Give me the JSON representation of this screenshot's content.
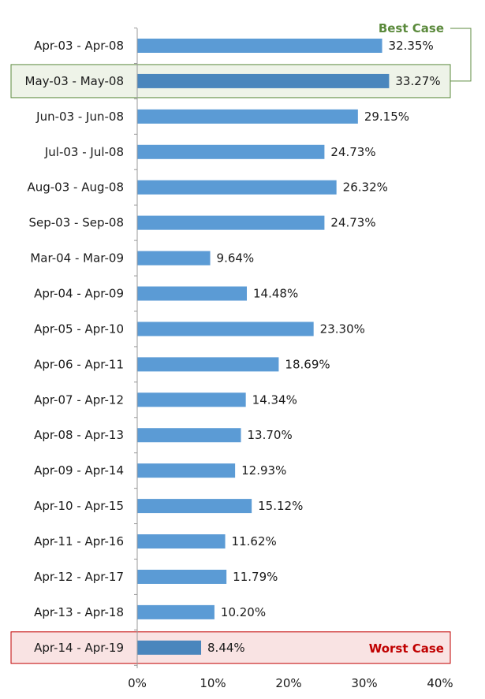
{
  "chart_data": {
    "type": "bar",
    "orientation": "horizontal",
    "categories": [
      "Apr-03 - Apr-08",
      "May-03 - May-08",
      "Jun-03 - Jun-08",
      "Jul-03 - Jul-08",
      "Aug-03 - Aug-08",
      "Sep-03 - Sep-08",
      "Mar-04 - Mar-09",
      "Apr-04 - Apr-09",
      "Apr-05 - Apr-10",
      "Apr-06 - Apr-11",
      "Apr-07 - Apr-12",
      "Apr-08 - Apr-13",
      "Apr-09 - Apr-14",
      "Apr-10 - Apr-15",
      "Apr-11 - Apr-16",
      "Apr-12 - Apr-17",
      "Apr-13 - Apr-18",
      "Apr-14 - Apr-19"
    ],
    "values": [
      32.35,
      33.27,
      29.15,
      24.73,
      26.32,
      24.73,
      9.64,
      14.48,
      23.3,
      18.69,
      14.34,
      13.7,
      12.93,
      15.12,
      11.62,
      11.79,
      10.2,
      8.44
    ],
    "value_labels": [
      "32.35%",
      "33.27%",
      "29.15%",
      "24.73%",
      "26.32%",
      "24.73%",
      "9.64%",
      "14.48%",
      "23.30%",
      "18.69%",
      "14.34%",
      "13.70%",
      "12.93%",
      "15.12%",
      "11.62%",
      "11.79%",
      "10.20%",
      "8.44%"
    ],
    "xlim": [
      0,
      40
    ],
    "xticks": [
      "0%",
      "10%",
      "20%",
      "30%",
      "40%"
    ],
    "grid": false,
    "annotations": {
      "best_case": {
        "label": "Best Case",
        "category_index": 1
      },
      "worst_case": {
        "label": "Worst Case",
        "category_index": 17
      }
    },
    "colors": {
      "bar": "#5b9bd5",
      "highlight_bar": "#4a86bd",
      "best": "#5b8a3c",
      "best_fill": "#eef3e8",
      "worst": "#c00000",
      "worst_fill": "#f9e3e3"
    }
  }
}
